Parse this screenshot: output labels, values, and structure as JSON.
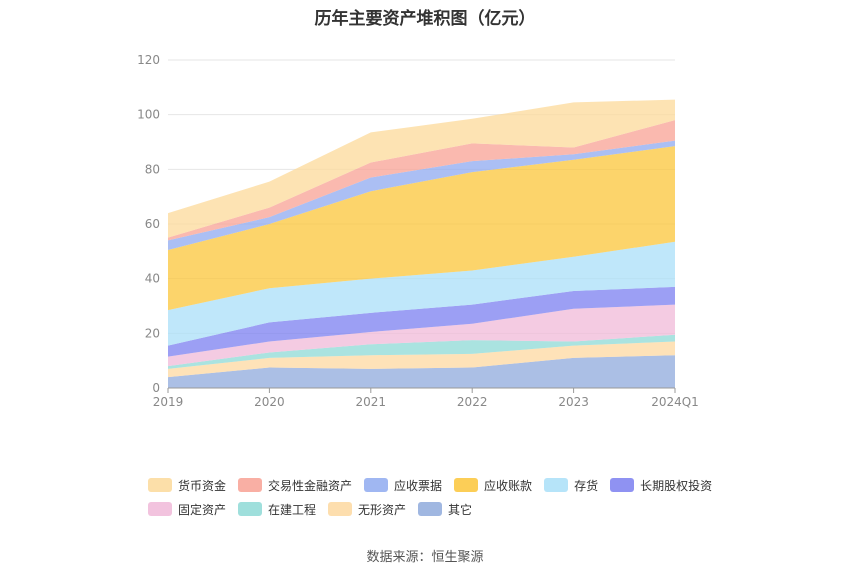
{
  "chart_data": {
    "type": "area",
    "stacked": true,
    "title": "历年主要资产堆积图（亿元）",
    "x": [
      "2019",
      "2020",
      "2021",
      "2022",
      "2023",
      "2024Q1"
    ],
    "ylim": [
      0,
      120
    ],
    "yticks": [
      0,
      20,
      40,
      60,
      80,
      100,
      120
    ],
    "grid": true,
    "legend_position": "bottom",
    "series": [
      {
        "name": "其它",
        "color": "#8faadc",
        "values": [
          4,
          7.5,
          7,
          7.5,
          11,
          12
        ]
      },
      {
        "name": "无形资产",
        "color": "#fdd8a0",
        "values": [
          3,
          3.5,
          5,
          5,
          4.5,
          5
        ]
      },
      {
        "name": "在建工程",
        "color": "#8ed9d6",
        "values": [
          1,
          2,
          4,
          5,
          1.5,
          2.5
        ]
      },
      {
        "name": "固定资产",
        "color": "#f0b9d8",
        "values": [
          3.5,
          4,
          4.5,
          6,
          12,
          11
        ]
      },
      {
        "name": "长期股权投资",
        "color": "#7b7ff0",
        "values": [
          4,
          7,
          7,
          7,
          6.5,
          6.5
        ]
      },
      {
        "name": "存货",
        "color": "#a9dff8",
        "values": [
          13,
          12.5,
          12.5,
          12.5,
          12.5,
          16.5
        ]
      },
      {
        "name": "应收账款",
        "color": "#fbc63a",
        "values": [
          22,
          23.5,
          32,
          36,
          35.5,
          35
        ]
      },
      {
        "name": "应收票据",
        "color": "#8faaf0",
        "values": [
          3.5,
          2.5,
          5,
          4,
          2,
          2
        ]
      },
      {
        "name": "交易性金融资产",
        "color": "#f8a194",
        "values": [
          1,
          3.5,
          5.5,
          6.5,
          2.5,
          7.5
        ]
      },
      {
        "name": "货币资金",
        "color": "#fcd99a",
        "values": [
          9,
          9.5,
          11,
          9,
          16.5,
          7.5
        ]
      }
    ]
  },
  "legend_rows": [
    [
      "货币资金",
      "交易性金融资产",
      "应收票据",
      "应收账款",
      "存货",
      "长期股权投资"
    ],
    [
      "固定资产",
      "在建工程",
      "无形资产",
      "其它"
    ]
  ],
  "source": "数据来源：恒生聚源"
}
